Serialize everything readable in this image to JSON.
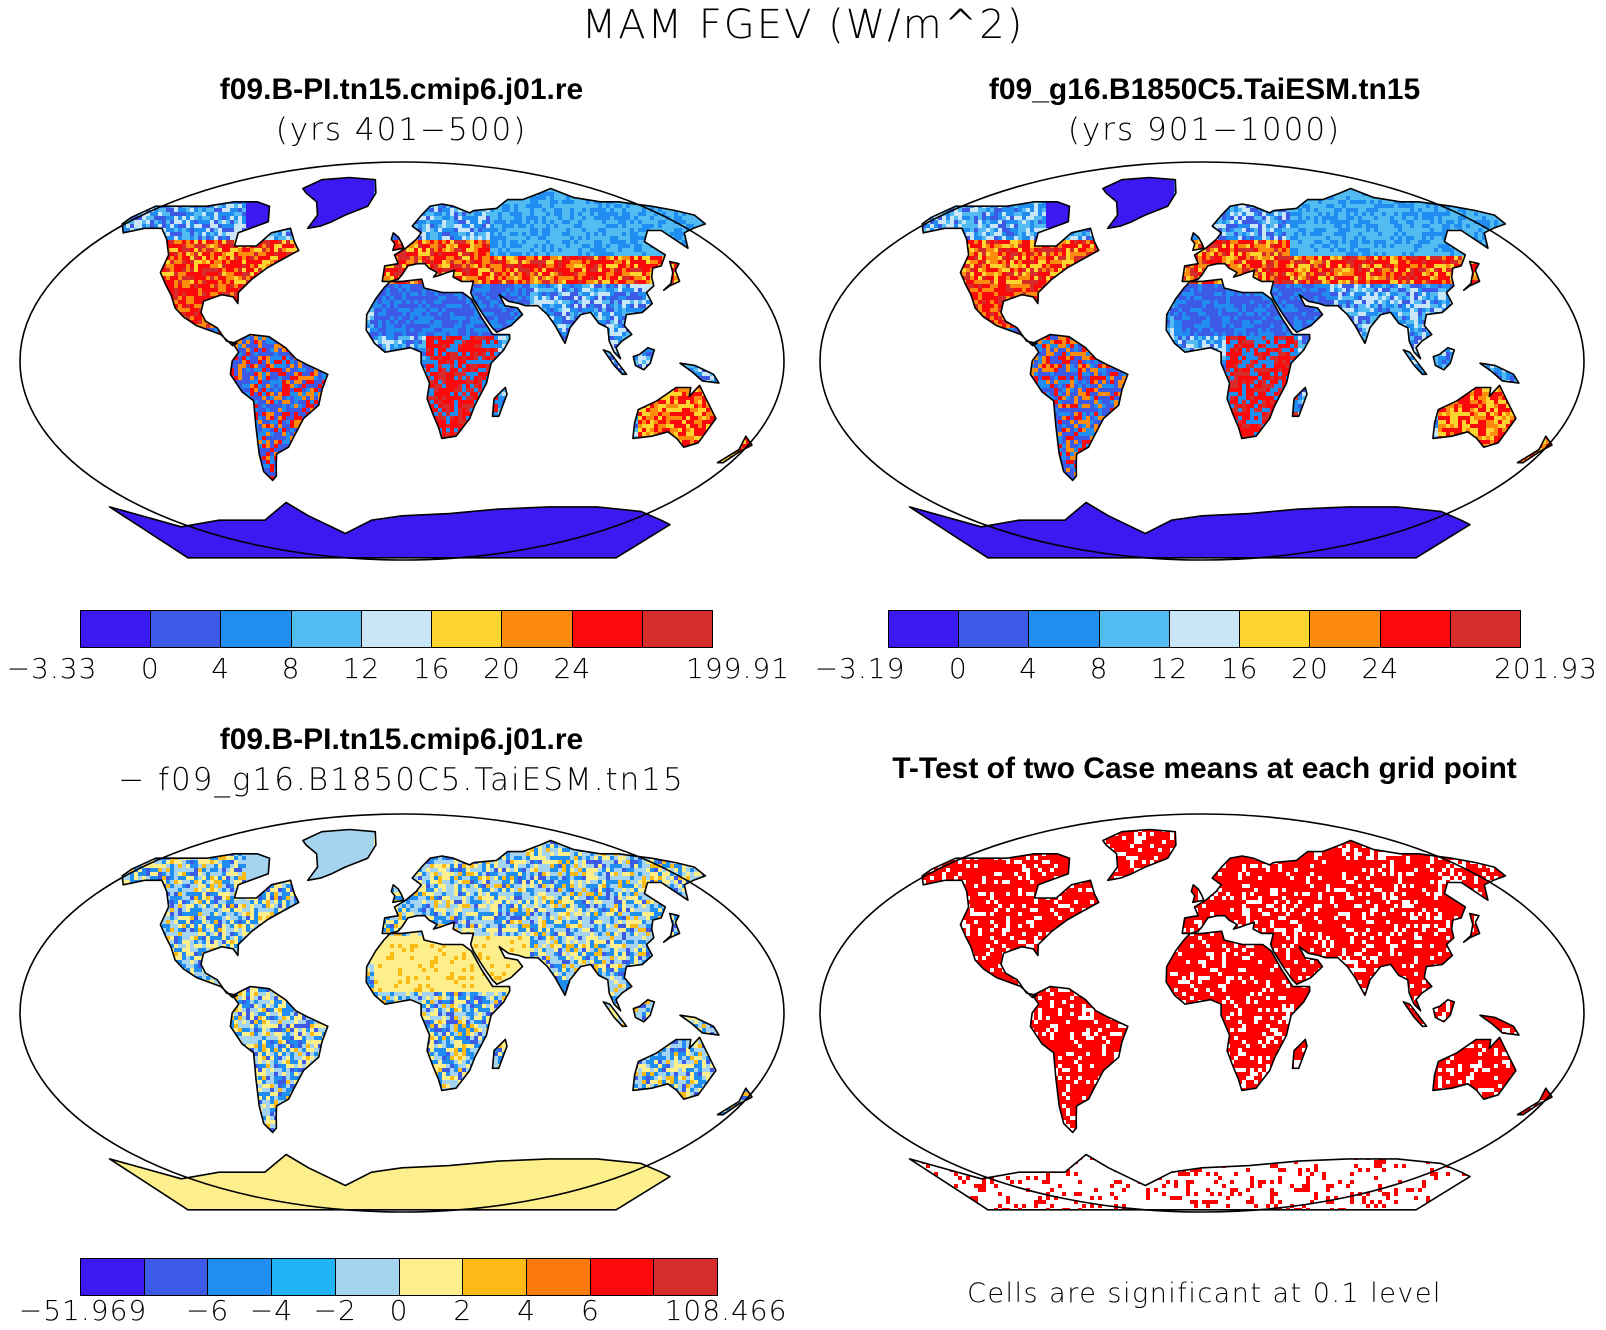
{
  "title": "MAM FGEV (W/m^2)",
  "panels": [
    {
      "id": "case1",
      "title": "f09.B-PI.tn15.cmip6.j01.re",
      "subtitle": "(yrs 401−500)",
      "colorbar": {
        "colors": [
          "#3a1af0",
          "#3c5ae6",
          "#1f8ef0",
          "#52bcf2",
          "#c9e6f6",
          "#fed42f",
          "#fd8c0e",
          "#fa0a0a",
          "#d62c2c"
        ],
        "tick_labels": [
          "−3.33",
          "0",
          "4",
          "8",
          "12",
          "16",
          "20",
          "24",
          "199.91"
        ]
      }
    },
    {
      "id": "case2",
      "title": "f09_g16.B1850C5.TaiESM.tn15",
      "subtitle": "(yrs 901−1000)",
      "colorbar": {
        "colors": [
          "#3a1af0",
          "#3c5ae6",
          "#1f8ef0",
          "#52bcf2",
          "#c9e6f6",
          "#fed42f",
          "#fd8c0e",
          "#fa0a0a",
          "#d62c2c"
        ],
        "tick_labels": [
          "−3.19",
          "0",
          "4",
          "8",
          "12",
          "16",
          "20",
          "24",
          "201.93"
        ]
      }
    },
    {
      "id": "difference",
      "title": "f09.B-PI.tn15.cmip6.j01.re",
      "subtitle": "− f09_g16.B1850C5.TaiESM.tn15",
      "colorbar": {
        "colors": [
          "#3a1af0",
          "#3c5ae6",
          "#1f8ef0",
          "#21b4f4",
          "#a4d4f0",
          "#fdf08c",
          "#fbba16",
          "#fb7a0c",
          "#fa0a0a",
          "#d62c2c"
        ],
        "tick_labels": [
          "−51.969",
          "−6",
          "−4",
          "−2",
          "0",
          "2",
          "4",
          "6",
          "108.466"
        ]
      }
    },
    {
      "id": "ttest",
      "title": "T-Test of two Case means at each grid point",
      "footnote": "Cells are significant at 0.1 level",
      "fill_color": "#ff0000"
    }
  ]
}
